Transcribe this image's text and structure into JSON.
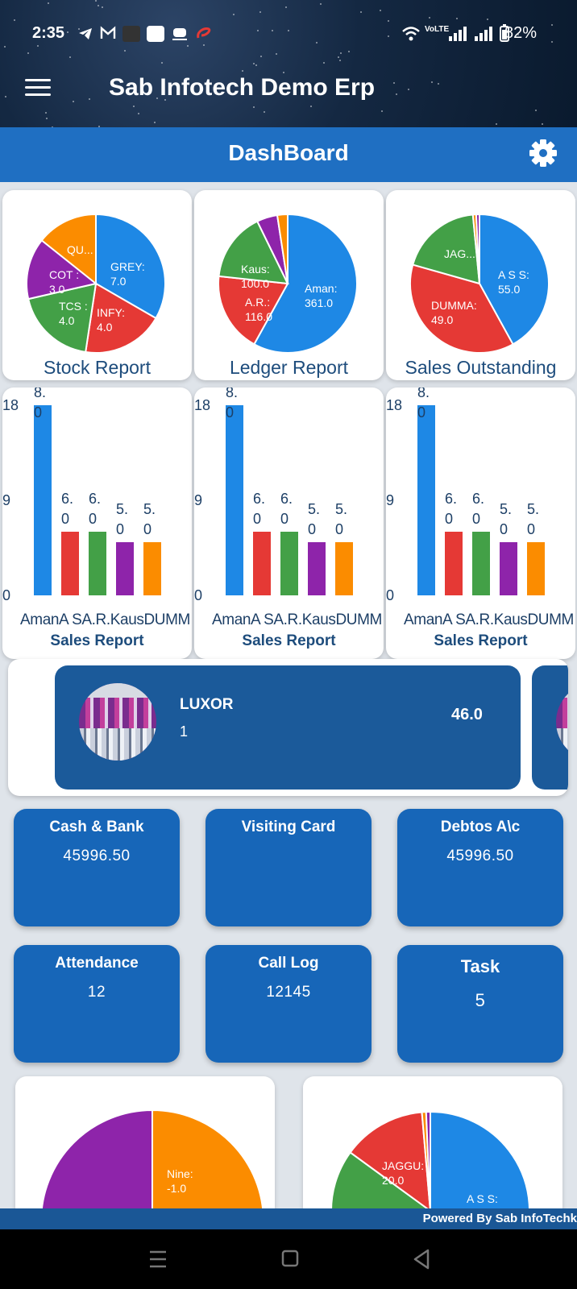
{
  "status_bar": {
    "time": "2:35",
    "battery": "82%"
  },
  "header": {
    "title": "Sab Infotech Demo Erp"
  },
  "dashboard": {
    "title": "DashBoard"
  },
  "pie_cards": [
    {
      "title": "Stock Report",
      "labels": [
        "GREY:",
        "7.0",
        "INFY:",
        "4.0",
        "TCS :",
        "4.0",
        "COT :",
        "3.0",
        "QU..."
      ]
    },
    {
      "title": "Ledger Report",
      "labels": [
        "Aman:",
        "361.0",
        "A.R.:",
        "116.0",
        "Kaus:",
        "100.0"
      ]
    },
    {
      "title": "Sales Outstanding",
      "labels": [
        "A S S:",
        "55.0",
        "DUMMA:",
        "49.0",
        "JAG..."
      ]
    }
  ],
  "bar_cards": [
    {
      "title": "Sales Report"
    },
    {
      "title": "Sales Report"
    },
    {
      "title": "Sales Report"
    }
  ],
  "chart_data": [
    {
      "type": "pie",
      "title": "Stock Report",
      "categories": [
        "GREY",
        "INFY",
        "TCS",
        "COT",
        "QU..."
      ],
      "values": [
        7.0,
        4.0,
        4.0,
        3.0,
        3.0
      ],
      "colors": [
        "#1e88e5",
        "#e53935",
        "#43a047",
        "#8e24aa",
        "#fb8c00"
      ]
    },
    {
      "type": "pie",
      "title": "Ledger Report",
      "categories": [
        "Aman",
        "A.R.",
        "Kaus",
        "",
        ""
      ],
      "values": [
        361.0,
        116.0,
        100.0,
        30,
        15
      ],
      "colors": [
        "#1e88e5",
        "#e53935",
        "#43a047",
        "#8e24aa",
        "#fb8c00"
      ]
    },
    {
      "type": "pie",
      "title": "Sales Outstanding",
      "categories": [
        "A S S",
        "DUMMA",
        "JAG...",
        "",
        ""
      ],
      "values": [
        55.0,
        49.0,
        25,
        1,
        1
      ],
      "colors": [
        "#1e88e5",
        "#e53935",
        "#43a047",
        "#fb8c00",
        "#8e24aa"
      ]
    },
    {
      "type": "bar",
      "title": "Sales Report",
      "xlabel_text": "AmanA SA.R.KausDUMM",
      "categories": [
        "Aman",
        "A S",
        "A.R.",
        "Kaus",
        "DUMM"
      ],
      "values": [
        18.0,
        6.0,
        6.0,
        5.0,
        5.0
      ],
      "value_labels": [
        "18.0",
        "6.0",
        "6.0",
        "5.0",
        "5.0"
      ],
      "yticks": [
        "0",
        "9",
        "18"
      ],
      "ylim": [
        0,
        18
      ],
      "colors": [
        "#1e88e5",
        "#e53935",
        "#43a047",
        "#8e24aa",
        "#fb8c00"
      ]
    },
    {
      "type": "bar",
      "title": "Sales Report",
      "xlabel_text": "AmanA SA.R.KausDUMM",
      "categories": [
        "Aman",
        "A S",
        "A.R.",
        "Kaus",
        "DUMM"
      ],
      "values": [
        18.0,
        6.0,
        6.0,
        5.0,
        5.0
      ],
      "value_labels": [
        "18.0",
        "6.0",
        "6.0",
        "5.0",
        "5.0"
      ],
      "yticks": [
        "0",
        "9",
        "18"
      ],
      "ylim": [
        0,
        18
      ],
      "colors": [
        "#1e88e5",
        "#e53935",
        "#43a047",
        "#8e24aa",
        "#fb8c00"
      ]
    },
    {
      "type": "bar",
      "title": "Sales Report",
      "xlabel_text": "AmanA SA.R.KausDUMM",
      "categories": [
        "Aman",
        "A S",
        "A.R.",
        "Kaus",
        "DUMM"
      ],
      "values": [
        18.0,
        6.0,
        6.0,
        5.0,
        5.0
      ],
      "value_labels": [
        "18.0",
        "6.0",
        "6.0",
        "5.0",
        "5.0"
      ],
      "yticks": [
        "0",
        "9",
        "18"
      ],
      "ylim": [
        0,
        18
      ],
      "colors": [
        "#1e88e5",
        "#e53935",
        "#43a047",
        "#8e24aa",
        "#fb8c00"
      ]
    },
    {
      "type": "pie",
      "title": "",
      "categories": [
        "",
        "Nine"
      ],
      "values": [
        1.0,
        -1.0
      ],
      "colors": [
        "#fb8c00",
        "#8e24aa"
      ]
    },
    {
      "type": "pie",
      "title": "",
      "categories": [
        "A S S",
        "JAGGU",
        "",
        "",
        ""
      ],
      "values": [
        55.0,
        20.0,
        12,
        0.6,
        0.6
      ],
      "colors": [
        "#1e88e5",
        "#43a047",
        "#e53935",
        "#fb8c00",
        "#8e24aa"
      ]
    }
  ],
  "carousel": {
    "name": "LUXOR",
    "quantity": "1",
    "value": "46.0"
  },
  "tiles": [
    {
      "label": "Cash & Bank",
      "value": "45996.50"
    },
    {
      "label": "Visiting Card",
      "value": ""
    },
    {
      "label": "Debtos A\\c",
      "value": "45996.50"
    },
    {
      "label": "Attendance",
      "value": "12"
    },
    {
      "label": "Call Log",
      "value": "12145"
    },
    {
      "label": "Task",
      "value": "5"
    }
  ],
  "bottom_pies": [
    {
      "labels": [
        "Nine:",
        "-1.0"
      ]
    },
    {
      "labels": [
        "JAGGU:",
        "20.0",
        "A S S:"
      ]
    }
  ],
  "footer": {
    "powered_by": "Powered By Sab InfoTechk"
  },
  "colors": {
    "primary": "#1f6fc2",
    "tile": "#1766b8",
    "header_bg": "#142842"
  },
  "icons": [
    "telegram-icon",
    "gmail-icon",
    "wifi-icon",
    "signal-icon",
    "battery-icon",
    "hamburger-icon",
    "settings-gear-icon"
  ]
}
